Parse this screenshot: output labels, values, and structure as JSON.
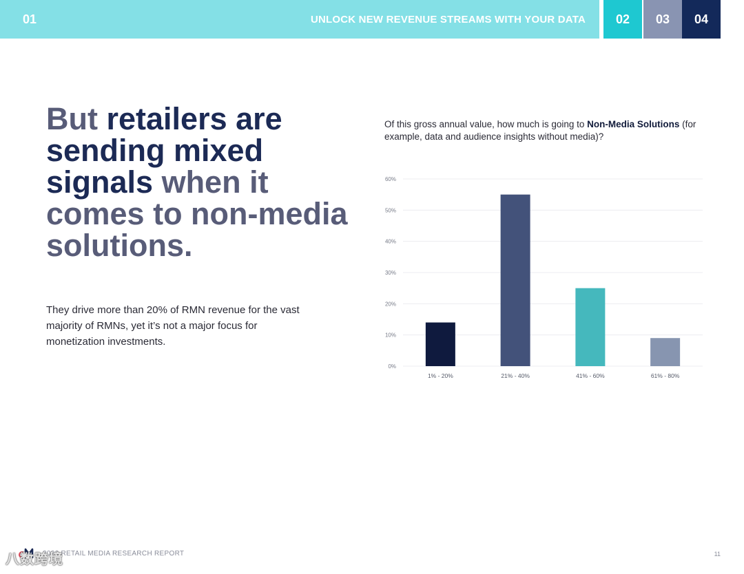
{
  "header": {
    "section_number": "01",
    "title": "UNLOCK NEW REVENUE STREAMS WITH YOUR DATA",
    "tabs": [
      "02",
      "03",
      "04"
    ]
  },
  "headline": {
    "part1": "But ",
    "part2": "retailers are sending mixed signals",
    "part3": " when it comes to non-media solutions."
  },
  "body_text": "They drive more than 20% of RMN revenue for the vast majority of RMNs, yet it’s not a major focus for monetization investments.",
  "question": {
    "prefix": "Of this gross annual value, how much is going to ",
    "bold": "Non-Media Solutions",
    "suffix": " (for example, data and audience insights without media)?"
  },
  "chart_data": {
    "type": "bar",
    "categories": [
      "1% - 20%",
      "21% - 40%",
      "41% - 60%",
      "61% - 80%"
    ],
    "values": [
      14,
      55,
      25,
      9
    ],
    "colors": [
      "#0f1a3e",
      "#43527a",
      "#45b8bd",
      "#8795b0"
    ],
    "ylim": [
      0,
      60
    ],
    "yticks": [
      "0%",
      "10%",
      "20%",
      "30%",
      "40%",
      "50%",
      "60%"
    ],
    "grid": true,
    "title": "",
    "xlabel": "",
    "ylabel": ""
  },
  "footer": {
    "report_name": "2022 RETAIL MEDIA RESEARCH REPORT",
    "page_number": "11",
    "logo_icon": "m-logo-icon",
    "watermark": "八数跨境"
  }
}
